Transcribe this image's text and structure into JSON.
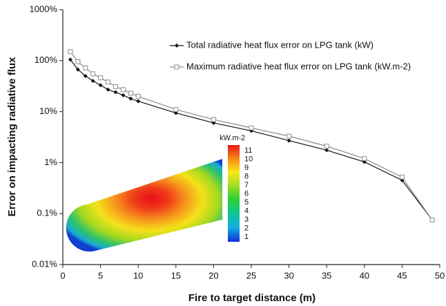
{
  "chart_data": {
    "type": "line",
    "x_label": "Fire to target distance (m)",
    "y_label": "Error on impacting radiative flux",
    "x": [
      1,
      2,
      3,
      4,
      5,
      6,
      7,
      8,
      9,
      10,
      15,
      20,
      25,
      30,
      35,
      40,
      45,
      49
    ],
    "series": [
      {
        "name": "Total radiative heat flux error on LPG tank (kW)",
        "color": "#111111",
        "marker": "diamond",
        "values": [
          105,
          67,
          50,
          40,
          33,
          27,
          24,
          21,
          18,
          16,
          9.4,
          6,
          4.2,
          2.7,
          1.75,
          1.03,
          0.45,
          0.075
        ]
      },
      {
        "name": "Maximum radiative heat flux error on LPG tank (kW.m-2)",
        "color": "#8c8c8c",
        "marker": "square",
        "values": [
          150,
          95,
          72,
          55,
          46,
          38,
          31,
          27,
          23,
          20,
          11,
          7,
          4.8,
          3.3,
          2.1,
          1.2,
          0.52,
          0.075
        ]
      }
    ],
    "xlim": [
      0,
      50
    ],
    "xticks": [
      0,
      5,
      10,
      15,
      20,
      25,
      30,
      35,
      40,
      45,
      50
    ],
    "ylim": [
      0.01,
      1000
    ],
    "log_y": true,
    "yticks": [
      {
        "value": 0.01,
        "label": "0.01%"
      },
      {
        "value": 0.1,
        "label": "0.1%"
      },
      {
        "value": 1,
        "label": "1%"
      },
      {
        "value": 10,
        "label": "10%"
      },
      {
        "value": 100,
        "label": "100%"
      },
      {
        "value": 1000,
        "label": "1000%"
      }
    ],
    "grid": false,
    "legend": "top-right",
    "colorbar": {
      "title": "kW.m-2",
      "ticks": [
        1,
        2,
        3,
        4,
        5,
        6,
        7,
        8,
        9,
        10,
        11
      ]
    }
  }
}
